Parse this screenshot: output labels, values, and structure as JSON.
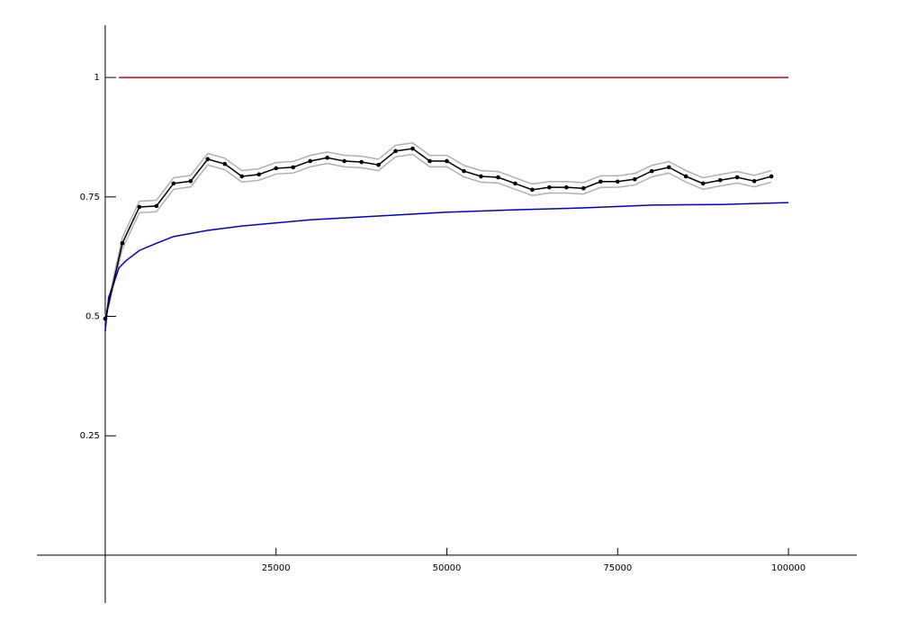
{
  "chart_data": {
    "type": "line",
    "xlim": [
      -10000,
      110000
    ],
    "ylim": [
      -0.1,
      1.1
    ],
    "xticks": [
      25000,
      50000,
      75000,
      100000
    ],
    "yticks": [
      0.25,
      0.5,
      0.75,
      1
    ],
    "series": [
      {
        "color": "#b0b0b0",
        "marker": false,
        "x": [
          0,
          2500,
          5000,
          7500,
          10000,
          12500,
          15000,
          17500,
          20000,
          22500,
          25000,
          27500,
          30000,
          32500,
          35000,
          37500,
          40000,
          42500,
          45000,
          47500,
          50000,
          52500,
          55000,
          57500,
          60000,
          62500,
          65000,
          67500,
          70000,
          72500,
          75000,
          77500,
          80000,
          82500,
          85000,
          87500,
          90000,
          92500,
          95000,
          97500
        ],
        "values": [
          0.5,
          0.665,
          0.741,
          0.743,
          0.79,
          0.795,
          0.841,
          0.831,
          0.805,
          0.809,
          0.822,
          0.824,
          0.837,
          0.844,
          0.837,
          0.835,
          0.829,
          0.858,
          0.863,
          0.837,
          0.837,
          0.816,
          0.805,
          0.803,
          0.79,
          0.777,
          0.782,
          0.782,
          0.78,
          0.794,
          0.794,
          0.799,
          0.816,
          0.824,
          0.805,
          0.79,
          0.797,
          0.803,
          0.795,
          0.805
        ]
      },
      {
        "color": "#b0b0b0",
        "marker": false,
        "x": [
          0,
          2500,
          5000,
          7500,
          10000,
          12500,
          15000,
          17500,
          20000,
          22500,
          25000,
          27500,
          30000,
          32500,
          35000,
          37500,
          40000,
          42500,
          45000,
          47500,
          50000,
          52500,
          55000,
          57500,
          60000,
          62500,
          65000,
          67500,
          70000,
          72500,
          75000,
          77500,
          80000,
          82500,
          85000,
          87500,
          90000,
          92500,
          95000,
          97500
        ],
        "values": [
          0.49,
          0.641,
          0.717,
          0.719,
          0.766,
          0.771,
          0.817,
          0.807,
          0.781,
          0.785,
          0.798,
          0.8,
          0.813,
          0.82,
          0.813,
          0.811,
          0.805,
          0.834,
          0.839,
          0.813,
          0.813,
          0.792,
          0.781,
          0.779,
          0.766,
          0.753,
          0.758,
          0.758,
          0.756,
          0.77,
          0.77,
          0.775,
          0.792,
          0.8,
          0.781,
          0.766,
          0.773,
          0.779,
          0.771,
          0.781
        ]
      },
      {
        "color": "#e00000",
        "marker": false,
        "x": [
          2000,
          100000
        ],
        "values": [
          1,
          1
        ]
      },
      {
        "color": "#0000d0",
        "marker": false,
        "x": [
          0,
          500,
          1000,
          2000,
          3000,
          5000,
          7500,
          10000,
          15000,
          20000,
          30000,
          40000,
          50000,
          60000,
          70000,
          80000,
          90000,
          100000
        ],
        "values": [
          0.469,
          0.54,
          0.559,
          0.601,
          0.616,
          0.638,
          0.653,
          0.667,
          0.68,
          0.689,
          0.702,
          0.71,
          0.718,
          0.723,
          0.727,
          0.733,
          0.734,
          0.738
        ]
      },
      {
        "color": "#000000",
        "marker": true,
        "x": [
          0,
          2500,
          5000,
          7500,
          10000,
          12500,
          15000,
          17500,
          20000,
          22500,
          25000,
          27500,
          30000,
          32500,
          35000,
          37500,
          40000,
          42500,
          45000,
          47500,
          50000,
          52500,
          55000,
          57500,
          60000,
          62500,
          65000,
          67500,
          70000,
          72500,
          75000,
          77500,
          80000,
          82500,
          85000,
          87500,
          90000,
          92500,
          95000,
          97500
        ],
        "values": [
          0.495,
          0.653,
          0.729,
          0.731,
          0.778,
          0.783,
          0.829,
          0.819,
          0.793,
          0.797,
          0.81,
          0.812,
          0.825,
          0.832,
          0.825,
          0.823,
          0.817,
          0.846,
          0.851,
          0.825,
          0.825,
          0.804,
          0.793,
          0.791,
          0.778,
          0.765,
          0.77,
          0.77,
          0.768,
          0.782,
          0.782,
          0.787,
          0.804,
          0.812,
          0.793,
          0.778,
          0.785,
          0.791,
          0.783,
          0.793
        ]
      }
    ]
  }
}
